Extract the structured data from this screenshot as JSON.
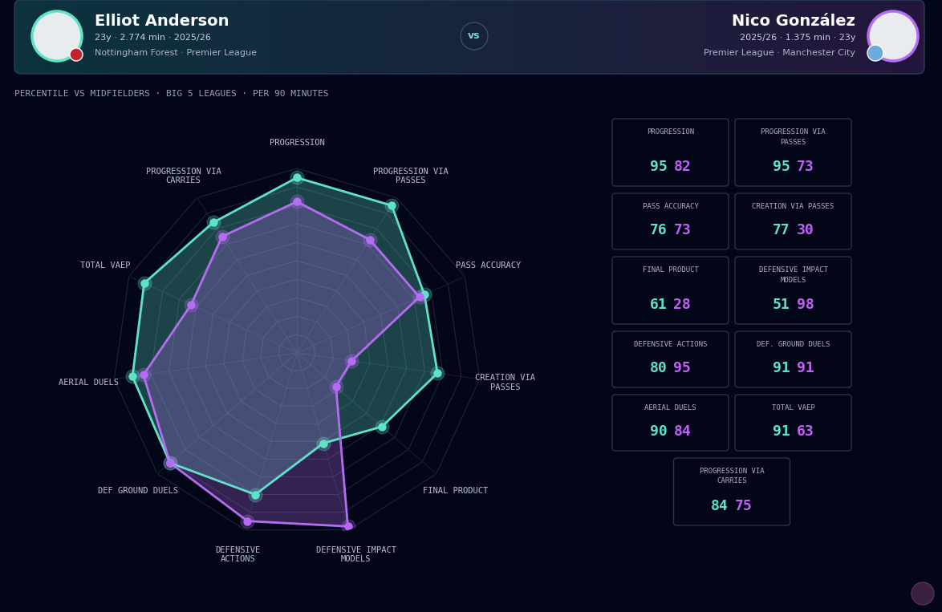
{
  "header": {
    "player1": {
      "name": "Elliot Anderson",
      "info": "23y · 2.774 min · 2025/26",
      "team": "Nottingham Forest · Premier League"
    },
    "vs": "vs",
    "player2": {
      "name": "Nico González",
      "info": "2025/26 · 1.375 min · 23y",
      "team": "Premier League · Manchester City"
    }
  },
  "subtitle": "PERCENTILE VS MIDFIELDERS · BIG 5 LEAGUES · PER 90 MINUTES",
  "chart_data": {
    "type": "radar",
    "categories": [
      "PROGRESSION",
      "PROGRESSION VIA PASSES",
      "PASS ACCURACY",
      "CREATION VIA PASSES",
      "FINAL PRODUCT",
      "DEFENSIVE IMPACT MODELS",
      "DEFENSIVE ACTIONS",
      "DEF GROUND DUELS",
      "AERIAL DUELS",
      "TOTAL VAEP",
      "PROGRESSION VIA CARRIES"
    ],
    "series": [
      {
        "name": "Elliot Anderson",
        "color": "#5fe3c8",
        "marker": "o",
        "values": [
          95,
          95,
          76,
          77,
          61,
          51,
          80,
          91,
          90,
          91,
          84
        ]
      },
      {
        "name": "Nico González",
        "color": "#b46cf2",
        "marker": "o",
        "values": [
          82,
          73,
          73,
          30,
          28,
          98,
          95,
          91,
          84,
          63,
          75
        ]
      }
    ],
    "ylim": [
      0,
      100
    ],
    "yticks": [
      10,
      20,
      30,
      40,
      50,
      60,
      70,
      80,
      90,
      100
    ],
    "grid": true,
    "tick_labels": "x"
  },
  "cards": {
    "labels": [
      "PROGRESSION",
      "PROGRESSION VIA PASSES",
      "PASS ACCURACY",
      "CREATION VIA PASSES",
      "FINAL PRODUCT",
      "DEFENSIVE IMPACT MODELS",
      "DEFENSIVE ACTIONS",
      "DEF. GROUND DUELS",
      "AERIAL DUELS",
      "TOTAL VAEP",
      "PROGRESSION VIA CARRIES"
    ]
  }
}
